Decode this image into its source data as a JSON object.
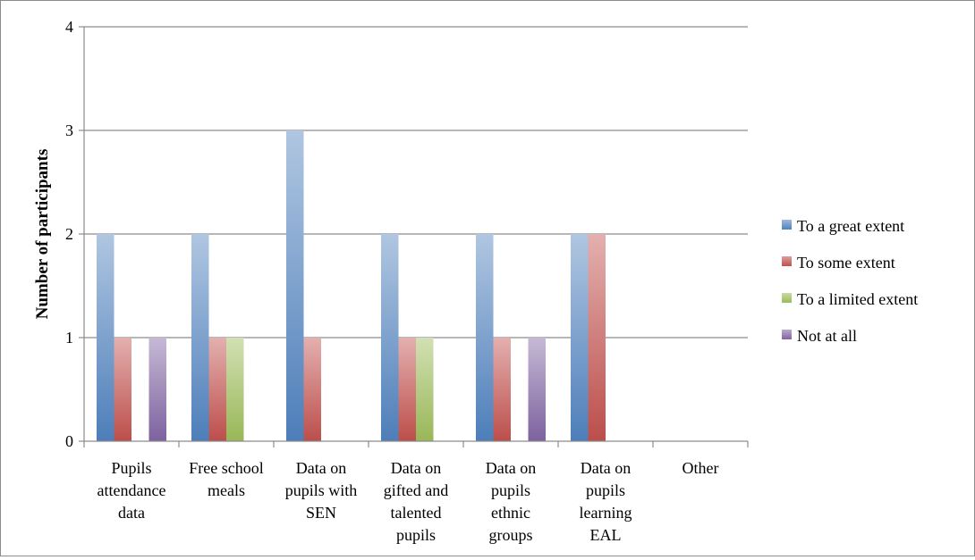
{
  "chart_data": {
    "type": "bar",
    "title": "",
    "xlabel": "",
    "ylabel": "Number of participants",
    "ylim": [
      0,
      4
    ],
    "yticks": [
      "0",
      "1",
      "2",
      "3",
      "4"
    ],
    "grid": true,
    "legend_position": "right",
    "categories": [
      [
        "Pupils",
        "attendance",
        "data"
      ],
      [
        "Free school",
        "meals"
      ],
      [
        "Data on",
        "pupils with",
        "SEN"
      ],
      [
        "Data on",
        "gifted and",
        "talented",
        "pupils"
      ],
      [
        "Data on",
        "pupils",
        "ethnic",
        "groups"
      ],
      [
        "Data on",
        "pupils",
        "learning",
        "EAL"
      ],
      [
        "Other"
      ]
    ],
    "series": [
      {
        "name": "To a great extent",
        "color": "#4f81bd",
        "values": [
          2,
          2,
          3,
          2,
          2,
          2,
          0
        ]
      },
      {
        "name": "To some extent",
        "color": "#c0504d",
        "values": [
          1,
          1,
          1,
          1,
          1,
          2,
          0
        ]
      },
      {
        "name": "To a limited extent",
        "color": "#9bbb59",
        "values": [
          0,
          1,
          0,
          1,
          0,
          0,
          0
        ]
      },
      {
        "name": "Not at all",
        "color": "#8064a2",
        "values": [
          1,
          0,
          0,
          0,
          1,
          0,
          0
        ]
      }
    ]
  }
}
